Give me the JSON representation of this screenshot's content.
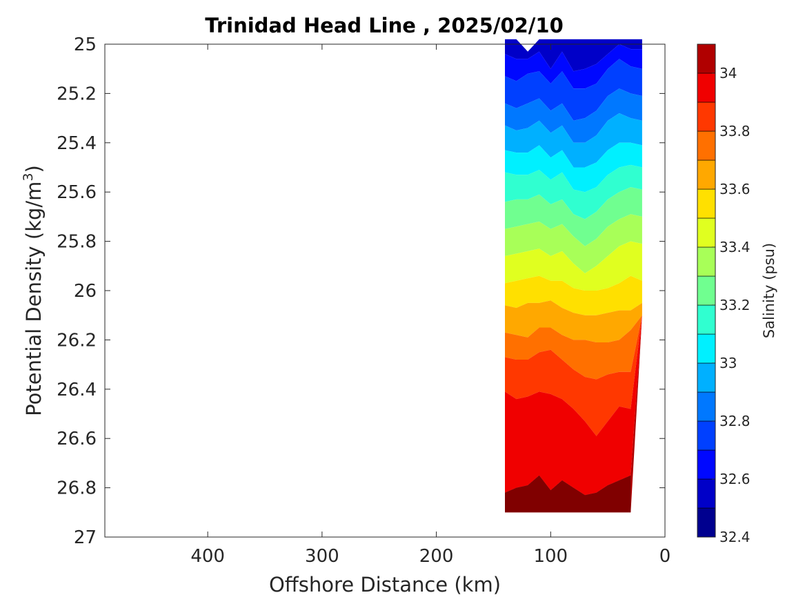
{
  "chart_data": {
    "type": "contour",
    "title": "Trinidad Head Line , 2025/02/10",
    "xlabel": "Offshore Distance (km)",
    "ylabel_main": "Potential Density (kg/m",
    "ylabel_sup": "3",
    "ylabel_close": ")",
    "xlim": [
      490,
      0
    ],
    "x_reversed": true,
    "ylim": [
      25,
      27
    ],
    "y_reversed": true,
    "xticks": [
      400,
      300,
      200,
      100,
      0
    ],
    "xtick_labels": [
      "400",
      "300",
      "200",
      "100",
      "0"
    ],
    "yticks": [
      25,
      25.2,
      25.4,
      25.6,
      25.8,
      26,
      26.2,
      26.4,
      26.6,
      26.8,
      27
    ],
    "ytick_labels": [
      "25",
      "25.2",
      "25.4",
      "25.6",
      "25.8",
      "26",
      "26.2",
      "26.4",
      "26.6",
      "26.8",
      "27"
    ],
    "grid": false,
    "colorbar": {
      "label": "Salinity (psu)",
      "min": 32.4,
      "max": 34.1,
      "levels": [
        32.4,
        32.5,
        32.6,
        32.7,
        32.8,
        32.9,
        33.0,
        33.1,
        33.2,
        33.3,
        33.4,
        33.5,
        33.6,
        33.7,
        33.8,
        33.9,
        34.0,
        34.1
      ],
      "colors": [
        "#00008f",
        "#0000c8",
        "#0008ff",
        "#0040ff",
        "#0078ff",
        "#00b0ff",
        "#00f0ff",
        "#30ffd0",
        "#70ff90",
        "#a8ff58",
        "#e0ff20",
        "#ffe000",
        "#ffa800",
        "#ff7000",
        "#ff3800",
        "#f00000",
        "#b00000"
      ],
      "ticks": [
        32.4,
        32.6,
        32.8,
        33,
        33.2,
        33.4,
        33.6,
        33.8,
        34
      ],
      "tick_labels": [
        "32.4",
        "32.6",
        "32.8",
        "33",
        "33.2",
        "33.4",
        "33.6",
        "33.8",
        "34"
      ]
    },
    "section": {
      "x_stations": [
        140,
        130,
        120,
        110,
        100,
        90,
        80,
        70,
        60,
        50,
        40,
        30,
        20
      ],
      "base_depth_range": [
        26.9,
        26.1
      ],
      "salinity_isolines": [
        {
          "level": 32.5,
          "density": [
            24.98,
            24.98,
            25.03,
            24.98,
            24.98,
            24.98,
            24.98,
            24.98,
            24.98,
            24.98,
            24.98,
            24.98,
            24.98
          ]
        },
        {
          "level": 32.6,
          "density": [
            25.04,
            25.06,
            25.06,
            25.03,
            25.1,
            25.03,
            25.11,
            25.1,
            25.08,
            25.04,
            25.0,
            25.02,
            25.02
          ]
        },
        {
          "level": 32.7,
          "density": [
            25.13,
            25.15,
            25.12,
            25.11,
            25.16,
            25.11,
            25.18,
            25.18,
            25.16,
            25.1,
            25.06,
            25.09,
            25.1
          ]
        },
        {
          "level": 32.8,
          "density": [
            25.24,
            25.26,
            25.24,
            25.22,
            25.27,
            25.24,
            25.31,
            25.3,
            25.27,
            25.21,
            25.18,
            25.2,
            25.21
          ]
        },
        {
          "level": 32.9,
          "density": [
            25.33,
            25.35,
            25.34,
            25.31,
            25.36,
            25.33,
            25.4,
            25.4,
            25.37,
            25.31,
            25.28,
            25.3,
            25.31
          ]
        },
        {
          "level": 33.0,
          "density": [
            25.43,
            25.44,
            25.44,
            25.41,
            25.46,
            25.43,
            25.5,
            25.5,
            25.48,
            25.43,
            25.4,
            25.4,
            25.41
          ]
        },
        {
          "level": 33.1,
          "density": [
            25.52,
            25.53,
            25.53,
            25.51,
            25.55,
            25.52,
            25.59,
            25.6,
            25.58,
            25.53,
            25.5,
            25.49,
            25.5
          ]
        },
        {
          "level": 33.2,
          "density": [
            25.64,
            25.63,
            25.63,
            25.61,
            25.65,
            25.63,
            25.69,
            25.71,
            25.68,
            25.63,
            25.6,
            25.58,
            25.59
          ]
        },
        {
          "level": 33.3,
          "density": [
            25.75,
            25.74,
            25.73,
            25.72,
            25.75,
            25.73,
            25.78,
            25.82,
            25.79,
            25.74,
            25.71,
            25.69,
            25.7
          ]
        },
        {
          "level": 33.4,
          "density": [
            25.86,
            25.85,
            25.84,
            25.83,
            25.86,
            25.84,
            25.89,
            25.93,
            25.9,
            25.86,
            25.82,
            25.8,
            25.81
          ]
        },
        {
          "level": 33.5,
          "density": [
            25.97,
            25.96,
            25.95,
            25.94,
            25.96,
            25.96,
            25.99,
            26.0,
            26.0,
            25.99,
            25.97,
            25.94,
            25.96
          ]
        },
        {
          "level": 33.6,
          "density": [
            26.06,
            26.07,
            26.05,
            26.05,
            26.04,
            26.07,
            26.09,
            26.1,
            26.1,
            26.09,
            26.08,
            26.08,
            26.05
          ]
        },
        {
          "level": 33.7,
          "density": [
            26.17,
            26.18,
            26.19,
            26.15,
            26.15,
            26.18,
            26.2,
            26.2,
            26.21,
            26.21,
            26.2,
            26.16,
            26.1
          ]
        },
        {
          "level": 33.8,
          "density": [
            26.27,
            26.28,
            26.28,
            26.25,
            26.24,
            26.28,
            26.32,
            26.35,
            26.36,
            26.34,
            26.33,
            26.33,
            26.1
          ]
        },
        {
          "level": 33.9,
          "density": [
            26.41,
            26.44,
            26.43,
            26.41,
            26.42,
            26.44,
            26.48,
            26.53,
            26.59,
            26.53,
            26.47,
            26.48,
            26.1
          ]
        },
        {
          "level": 34.0,
          "density": [
            26.82,
            26.8,
            26.79,
            26.75,
            26.81,
            26.77,
            26.8,
            26.83,
            26.82,
            26.79,
            26.77,
            26.75,
            26.1
          ]
        },
        {
          "level": 34.1,
          "density": [
            26.9,
            26.9,
            26.9,
            26.9,
            26.9,
            26.9,
            26.9,
            26.9,
            26.9,
            26.9,
            26.9,
            26.9,
            26.1
          ]
        }
      ]
    }
  }
}
